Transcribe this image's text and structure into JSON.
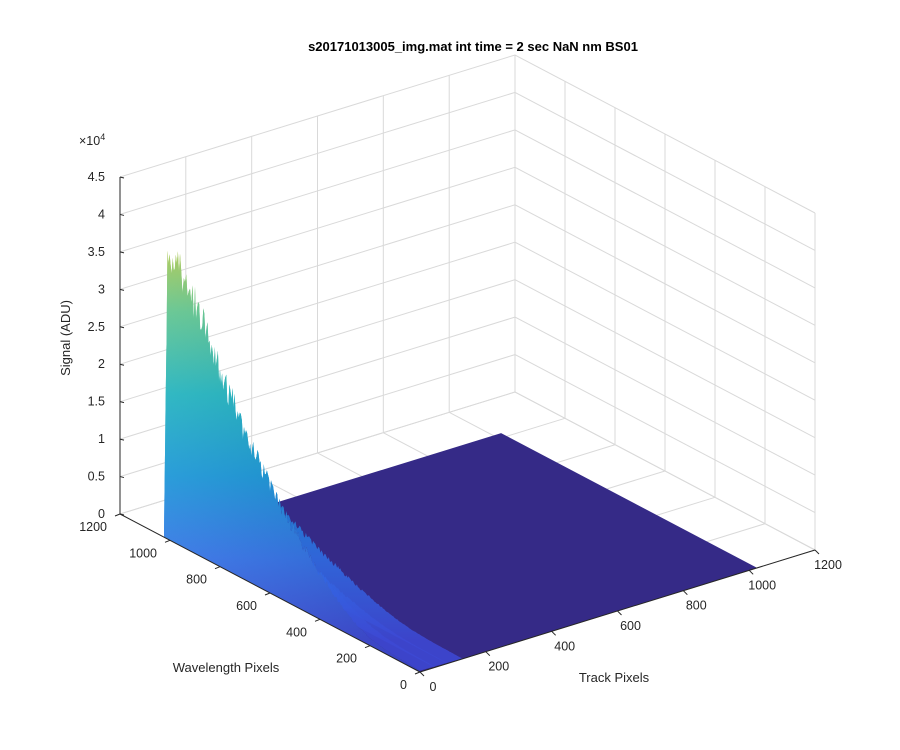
{
  "chart_data": {
    "type": "surface",
    "title": "s20171013005_img.mat int time = 2 sec  NaN nm BS01",
    "xlabel": "Track Pixels",
    "ylabel": "Wavelength Pixels",
    "zlabel": "Signal (ADU)",
    "z_exponent_label": "×10",
    "z_exponent_power": "4",
    "xlim": [
      0,
      1200
    ],
    "ylim": [
      0,
      1200
    ],
    "zlim": [
      0,
      45000
    ],
    "x_ticks": [
      0,
      200,
      400,
      600,
      800,
      1000,
      1200
    ],
    "x_tick_labels": [
      "0",
      "200",
      "400",
      "600",
      "800",
      "1000",
      "1200"
    ],
    "y_ticks": [
      0,
      200,
      400,
      600,
      800,
      1000,
      1200
    ],
    "y_tick_labels": [
      "0",
      "200",
      "400",
      "600",
      "800",
      "1000",
      "1200"
    ],
    "z_ticks": [
      0,
      5000,
      10000,
      15000,
      20000,
      25000,
      30000,
      35000,
      40000,
      45000
    ],
    "z_tick_labels": [
      "0",
      "0.5",
      "1",
      "1.5",
      "2",
      "2.5",
      "3",
      "3.5",
      "4",
      "4.5"
    ],
    "grid": true,
    "colormap": "parula",
    "surface_extent": {
      "x": [
        0,
        1024
      ],
      "y": [
        0,
        1024
      ]
    },
    "signal_track_range": [
      0,
      128
    ],
    "signal_peak_wavelength_pixel": 1010,
    "signal_peak_value": 37500,
    "signal_spectrum_profile": [
      {
        "wavelength_pixel": 1024,
        "value": 800
      },
      {
        "wavelength_pixel": 1010,
        "value": 37500
      },
      {
        "wavelength_pixel": 960,
        "value": 37000
      },
      {
        "wavelength_pixel": 900,
        "value": 33000
      },
      {
        "wavelength_pixel": 850,
        "value": 30000
      },
      {
        "wavelength_pixel": 800,
        "value": 26000
      },
      {
        "wavelength_pixel": 750,
        "value": 23000
      },
      {
        "wavelength_pixel": 700,
        "value": 19500
      },
      {
        "wavelength_pixel": 650,
        "value": 17000
      },
      {
        "wavelength_pixel": 600,
        "value": 14500
      },
      {
        "wavelength_pixel": 550,
        "value": 12000
      },
      {
        "wavelength_pixel": 500,
        "value": 10000
      },
      {
        "wavelength_pixel": 450,
        "value": 8000
      },
      {
        "wavelength_pixel": 400,
        "value": 6000
      },
      {
        "wavelength_pixel": 350,
        "value": 4500
      },
      {
        "wavelength_pixel": 300,
        "value": 3000
      },
      {
        "wavelength_pixel": 250,
        "value": 1800
      },
      {
        "wavelength_pixel": 200,
        "value": 1000
      },
      {
        "wavelength_pixel": 150,
        "value": 600
      },
      {
        "wavelength_pixel": 100,
        "value": 400
      },
      {
        "wavelength_pixel": 50,
        "value": 300
      },
      {
        "wavelength_pixel": 0,
        "value": 200
      }
    ],
    "background_value": 0
  },
  "colors": {
    "flat_surface": "#352a87",
    "grid": "#d9d9d9",
    "axis": "#262626",
    "pane": "#ffffff"
  }
}
